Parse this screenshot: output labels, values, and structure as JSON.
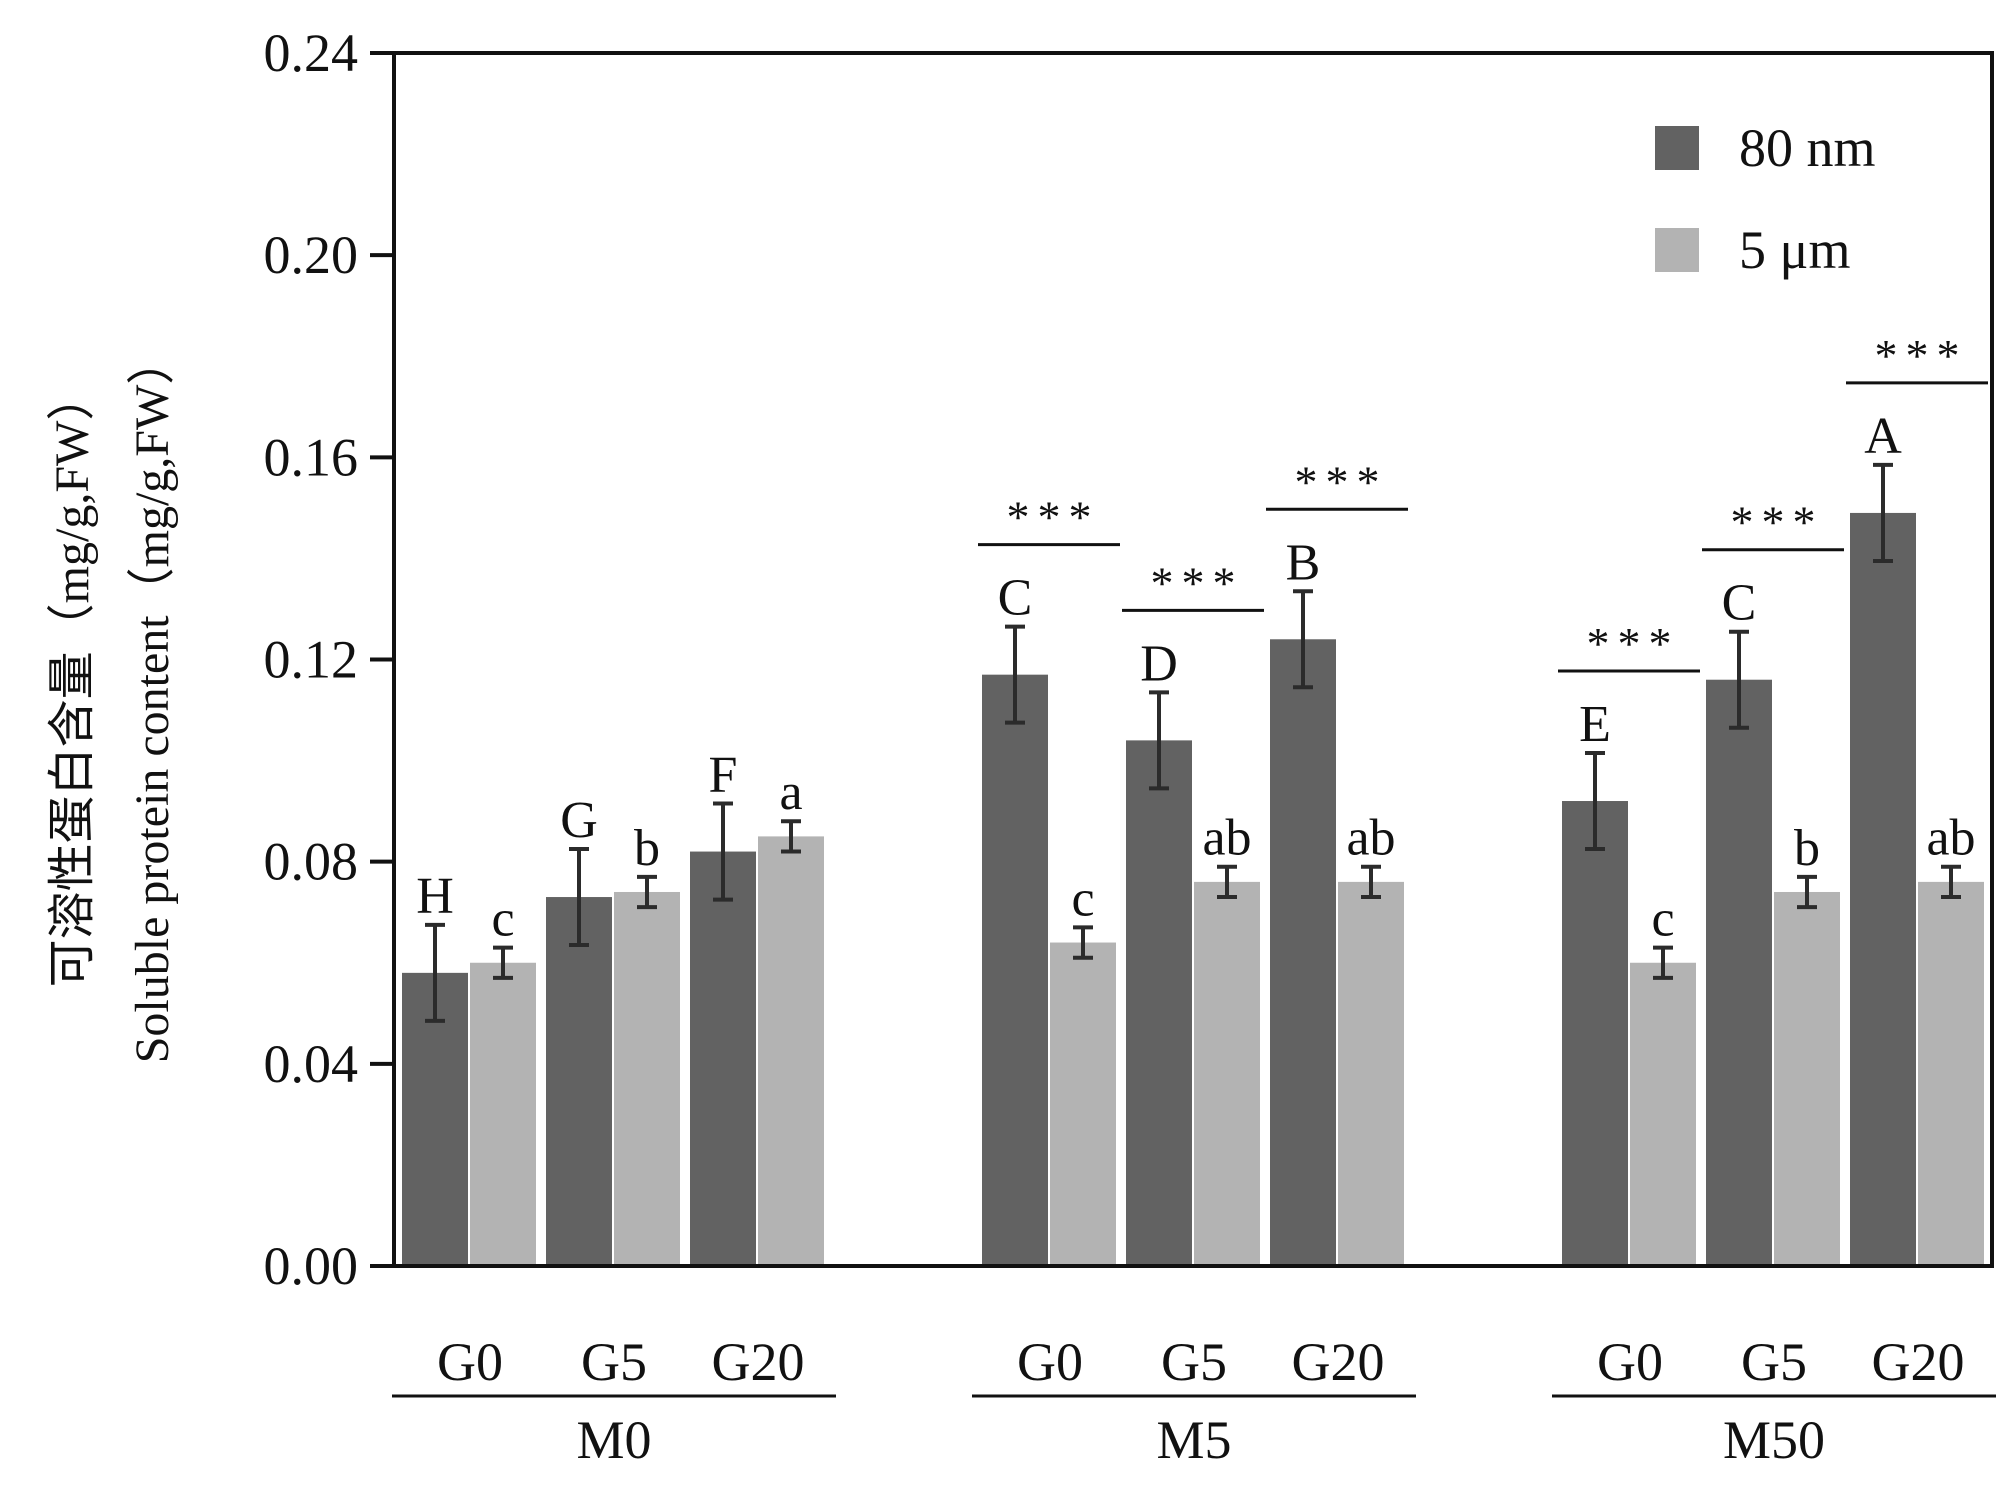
{
  "chart_data": {
    "type": "bar",
    "title": "",
    "xlabel": "",
    "ylabel_cn": "可溶性蛋白含量（mg/g,FW）",
    "ylabel_en": "Soluble protein content（mg/g,FW）",
    "ylim": [
      0,
      0.24
    ],
    "yticks": [
      "0.00",
      "0.04",
      "0.08",
      "0.12",
      "0.16",
      "0.20",
      "0.24"
    ],
    "grid": false,
    "legend_position": "top-right",
    "series": [
      {
        "name": "80 nm",
        "color": "#626262"
      },
      {
        "name": "5 μm",
        "color": "#b3b3b3"
      }
    ],
    "groups": [
      {
        "label": "M0",
        "categories": [
          {
            "label": "G0",
            "values": [
              0.058,
              0.06
            ],
            "errors": [
              0.0095,
              0.003
            ],
            "letters": [
              "H",
              "c"
            ],
            "significance": ""
          },
          {
            "label": "G5",
            "values": [
              0.073,
              0.074
            ],
            "errors": [
              0.0095,
              0.003
            ],
            "letters": [
              "G",
              "b"
            ],
            "significance": ""
          },
          {
            "label": "G20",
            "values": [
              0.082,
              0.085
            ],
            "errors": [
              0.0095,
              0.003
            ],
            "letters": [
              "F",
              "a"
            ],
            "significance": ""
          }
        ]
      },
      {
        "label": "M5",
        "categories": [
          {
            "label": "G0",
            "values": [
              0.117,
              0.064
            ],
            "errors": [
              0.0095,
              0.003
            ],
            "letters": [
              "C",
              "c"
            ],
            "significance": "***"
          },
          {
            "label": "G5",
            "values": [
              0.104,
              0.076
            ],
            "errors": [
              0.0095,
              0.003
            ],
            "letters": [
              "D",
              "ab"
            ],
            "significance": "***"
          },
          {
            "label": "G20",
            "values": [
              0.124,
              0.076
            ],
            "errors": [
              0.0095,
              0.003
            ],
            "letters": [
              "B",
              "ab"
            ],
            "significance": "***"
          }
        ]
      },
      {
        "label": "M50",
        "categories": [
          {
            "label": "G0",
            "values": [
              0.092,
              0.06
            ],
            "errors": [
              0.0095,
              0.003
            ],
            "letters": [
              "E",
              "c"
            ],
            "significance": "***"
          },
          {
            "label": "G5",
            "values": [
              0.116,
              0.074
            ],
            "errors": [
              0.0095,
              0.003
            ],
            "letters": [
              "C",
              "b"
            ],
            "significance": "***"
          },
          {
            "label": "G20",
            "values": [
              0.149,
              0.076
            ],
            "errors": [
              0.0095,
              0.003
            ],
            "letters": [
              "A",
              "ab"
            ],
            "significance": "***"
          }
        ]
      }
    ]
  }
}
